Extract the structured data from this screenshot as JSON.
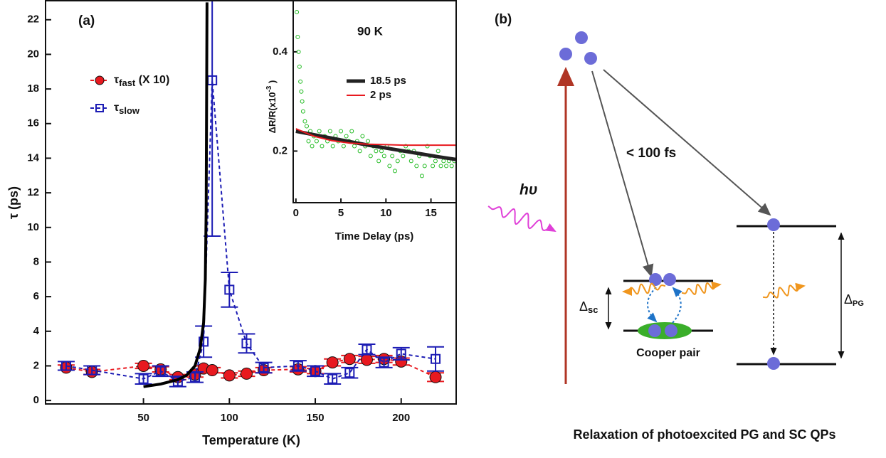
{
  "chart_data": [
    {
      "type": "line",
      "panel_label": "(a)",
      "xlabel": "Temperature (K)",
      "ylabel": "τ (ps)",
      "xlim": [
        -7,
        232
      ],
      "ylim": [
        -0.2,
        23.1
      ],
      "xticks": [
        50,
        100,
        150,
        200
      ],
      "yticks": [
        0,
        2,
        4,
        6,
        8,
        10,
        12,
        14,
        16,
        18,
        20,
        22
      ],
      "x": [
        5,
        20,
        50,
        60,
        70,
        80,
        85,
        90,
        100,
        110,
        120,
        140,
        150,
        160,
        170,
        180,
        190,
        200,
        220
      ],
      "series": [
        {
          "name": "τ",
          "subscript": "fast",
          "suffix": " (X 10)",
          "color": "#e8191f",
          "marker": "circle",
          "linestyle": "dashed",
          "values": [
            1.9,
            1.65,
            2.0,
            1.8,
            1.35,
            1.5,
            1.85,
            1.75,
            1.45,
            1.55,
            1.75,
            1.8,
            1.7,
            2.2,
            2.4,
            2.35,
            2.4,
            2.25,
            1.35
          ],
          "errors": [
            0.15,
            0.15,
            0.15,
            0.15,
            0.15,
            0.15,
            0.15,
            0.15,
            0.15,
            0.15,
            0.15,
            0.15,
            0.15,
            0.2,
            0.2,
            0.2,
            0.2,
            0.2,
            0.25
          ]
        },
        {
          "name": "τ",
          "subscript": "slow",
          "color": "#1c1cb4",
          "marker": "square",
          "linestyle": "dashed",
          "values": [
            2.0,
            1.75,
            1.25,
            1.7,
            1.1,
            1.35,
            3.4,
            18.5,
            6.4,
            3.3,
            1.9,
            2.0,
            1.7,
            1.25,
            1.6,
            2.95,
            2.2,
            2.7,
            2.4
          ],
          "errors": [
            0.25,
            0.25,
            0.3,
            0.3,
            0.3,
            0.3,
            0.9,
            9.0,
            1.0,
            0.55,
            0.3,
            0.3,
            0.3,
            0.3,
            0.3,
            0.3,
            0.3,
            0.35,
            0.7
          ]
        },
        {
          "color": "#000000",
          "linestyle": "solid",
          "linewidth": 4,
          "x": [
            50,
            60,
            70,
            75,
            80,
            83,
            85,
            86,
            86.5,
            87
          ],
          "values": [
            0.8,
            0.95,
            1.2,
            1.45,
            2.0,
            3.0,
            4.5,
            7.0,
            11.0,
            23.0
          ]
        }
      ]
    },
    {
      "type": "scatter",
      "annotation": "90 K",
      "xlabel": "Time Delay (ps)",
      "ylabel": {
        "text": "ΔR/R(x10",
        "superscript": "-3",
        "end": " )"
      },
      "xlim": [
        -0.3,
        17.8
      ],
      "ylim": [
        0.096,
        0.503
      ],
      "xticks": [
        0,
        5,
        10,
        15
      ],
      "yticks": [
        0.2,
        0.4
      ],
      "series": [
        {
          "color": "#22bb22",
          "marker": "open-circle",
          "linestyle": "none",
          "x": [
            0.1,
            0.2,
            0.3,
            0.4,
            0.5,
            0.6,
            0.7,
            0.8,
            1.0,
            1.2,
            1.4,
            1.6,
            1.8,
            2.0,
            2.3,
            2.6,
            2.9,
            3.2,
            3.5,
            3.8,
            4.1,
            4.4,
            4.7,
            5.0,
            5.3,
            5.6,
            5.9,
            6.2,
            6.5,
            6.8,
            7.1,
            7.4,
            7.7,
            8.0,
            8.3,
            8.6,
            8.9,
            9.2,
            9.5,
            9.8,
            10.1,
            10.4,
            10.7,
            11.0,
            11.3,
            11.6,
            11.9,
            12.2,
            12.5,
            12.8,
            13.1,
            13.4,
            13.7,
            14.0,
            14.3,
            14.6,
            14.9,
            15.2,
            15.5,
            15.8,
            16.1,
            16.4,
            16.7,
            17.0,
            17.3,
            17.6
          ],
          "values": [
            0.48,
            0.43,
            0.4,
            0.37,
            0.34,
            0.32,
            0.3,
            0.28,
            0.26,
            0.25,
            0.22,
            0.24,
            0.21,
            0.23,
            0.22,
            0.24,
            0.21,
            0.23,
            0.22,
            0.24,
            0.21,
            0.23,
            0.22,
            0.24,
            0.21,
            0.23,
            0.22,
            0.24,
            0.21,
            0.22,
            0.2,
            0.23,
            0.21,
            0.22,
            0.19,
            0.21,
            0.2,
            0.18,
            0.2,
            0.19,
            0.21,
            0.17,
            0.19,
            0.16,
            0.18,
            0.2,
            0.19,
            0.21,
            0.2,
            0.18,
            0.2,
            0.17,
            0.19,
            0.15,
            0.17,
            0.21,
            0.19,
            0.17,
            0.18,
            0.2,
            0.17,
            0.18,
            0.17,
            0.18,
            0.17,
            0.18
          ]
        },
        {
          "name": "18.5 ps",
          "color": "#222222",
          "linestyle": "solid",
          "linewidth": 5,
          "x": [
            0,
            2,
            4,
            6,
            8,
            10,
            12,
            14,
            16,
            17.8
          ],
          "values": [
            0.24,
            0.233,
            0.226,
            0.219,
            0.212,
            0.206,
            0.2,
            0.194,
            0.188,
            0.183
          ]
        },
        {
          "name": "2 ps",
          "color": "#e8191f",
          "linestyle": "solid",
          "linewidth": 2,
          "x": [
            0,
            2,
            4,
            6,
            8,
            10,
            12,
            14,
            16,
            17.8
          ],
          "values": [
            0.245,
            0.23,
            0.221,
            0.216,
            0.214,
            0.213,
            0.212,
            0.212,
            0.212,
            0.212
          ]
        }
      ]
    }
  ],
  "diagram": {
    "panel_label": "(b)",
    "photon": "hυ",
    "fast_relaxation": "< 100 fs",
    "delta_sc": {
      "symbol": "Δ",
      "subscript": "sc"
    },
    "delta_pg": {
      "symbol": "Δ",
      "subscript": "PG"
    },
    "cooper_pair": "Cooper pair",
    "caption": "Relaxation of photoexcited PG and SC QPs"
  }
}
